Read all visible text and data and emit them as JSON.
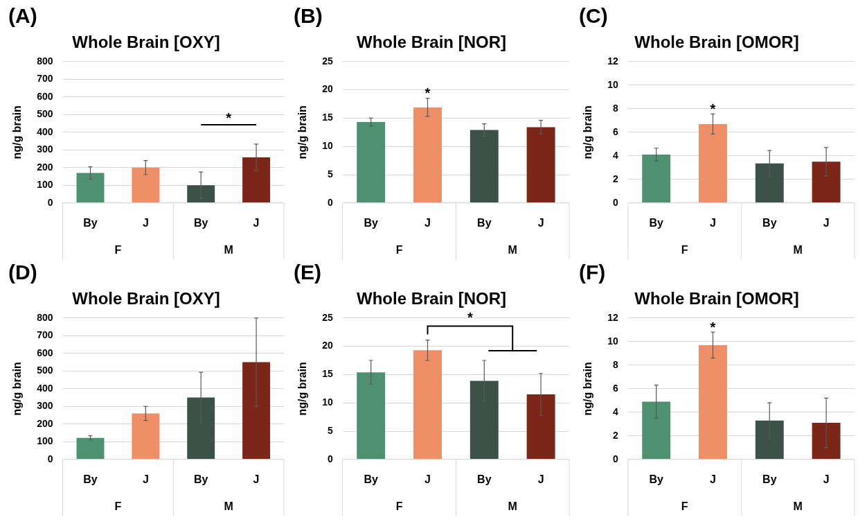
{
  "chart_data": [
    {
      "type": "bar",
      "title": "Whole Brain [OXY]",
      "ylabel": "ng/g brain",
      "categories": [
        "By",
        "J",
        "By",
        "J"
      ],
      "values": [
        170,
        200,
        100,
        258
      ],
      "errors": [
        35,
        40,
        75,
        75
      ],
      "colors": [
        "#4e9171",
        "#ef8f68",
        "#3c5249",
        "#7b2618"
      ],
      "ylim": [
        0,
        800
      ],
      "yticks": [
        0,
        100,
        200,
        300,
        400,
        500,
        600,
        700,
        800
      ],
      "grid": "y",
      "annotations": [
        "(A)",
        "F",
        "M",
        "*"
      ]
    },
    {
      "type": "bar",
      "title": "Whole Brain [NOR]",
      "ylabel": "ng/g brain",
      "categories": [
        "By",
        "J",
        "By",
        "J"
      ],
      "values": [
        14.3,
        16.9,
        12.9,
        13.4
      ],
      "errors": [
        0.7,
        1.6,
        1.1,
        1.2
      ],
      "colors": [
        "#4e9171",
        "#ef8f68",
        "#3c5249",
        "#7b2618"
      ],
      "ylim": [
        0,
        25
      ],
      "yticks": [
        0,
        5,
        10,
        15,
        20,
        25
      ],
      "grid": "y",
      "annotations": [
        "(B)",
        "F",
        "M",
        "*"
      ]
    },
    {
      "type": "bar",
      "title": "Whole Brain [OMOR]",
      "ylabel": "ng/g brain",
      "categories": [
        "By",
        "J",
        "By",
        "J"
      ],
      "values": [
        4.1,
        6.7,
        3.35,
        3.5
      ],
      "errors": [
        0.55,
        0.85,
        1.1,
        1.2
      ],
      "colors": [
        "#4e9171",
        "#ef8f68",
        "#3c5249",
        "#7b2618"
      ],
      "ylim": [
        0,
        12
      ],
      "yticks": [
        0,
        2,
        4,
        6,
        8,
        10,
        12
      ],
      "grid": "y",
      "annotations": [
        "(C)",
        "F",
        "M",
        "*"
      ]
    },
    {
      "type": "bar",
      "title": "Whole Brain [OXY]",
      "ylabel": "ng/g brain",
      "categories": [
        "By",
        "J",
        "By",
        "J"
      ],
      "values": [
        122,
        260,
        350,
        550
      ],
      "errors": [
        12,
        40,
        143,
        250
      ],
      "colors": [
        "#4e9171",
        "#ef8f68",
        "#3c5249",
        "#7b2618"
      ],
      "ylim": [
        0,
        800
      ],
      "yticks": [
        0,
        100,
        200,
        300,
        400,
        500,
        600,
        700,
        800
      ],
      "grid": "y",
      "annotations": [
        "(D)",
        "F",
        "M"
      ]
    },
    {
      "type": "bar",
      "title": "Whole Brain [NOR]",
      "ylabel": "ng/g brain",
      "categories": [
        "By",
        "J",
        "By",
        "J"
      ],
      "values": [
        15.4,
        19.3,
        13.9,
        11.5
      ],
      "errors": [
        2.1,
        1.8,
        3.6,
        3.7
      ],
      "colors": [
        "#4e9171",
        "#ef8f68",
        "#3c5249",
        "#7b2618"
      ],
      "ylim": [
        0,
        25
      ],
      "yticks": [
        0,
        5,
        10,
        15,
        20,
        25
      ],
      "grid": "y",
      "annotations": [
        "(E)",
        "F",
        "M",
        "*"
      ]
    },
    {
      "type": "bar",
      "title": "Whole Brain [OMOR]",
      "ylabel": "ng/g brain",
      "categories": [
        "By",
        "J",
        "By",
        "J"
      ],
      "values": [
        4.9,
        9.7,
        3.3,
        3.1
      ],
      "errors": [
        1.4,
        1.1,
        1.5,
        2.1
      ],
      "colors": [
        "#4e9171",
        "#ef8f68",
        "#3c5249",
        "#7b2618"
      ],
      "ylim": [
        0,
        12
      ],
      "yticks": [
        0,
        2,
        4,
        6,
        8,
        10,
        12
      ],
      "grid": "y",
      "annotations": [
        "(F)",
        "F",
        "M",
        "*"
      ]
    }
  ]
}
